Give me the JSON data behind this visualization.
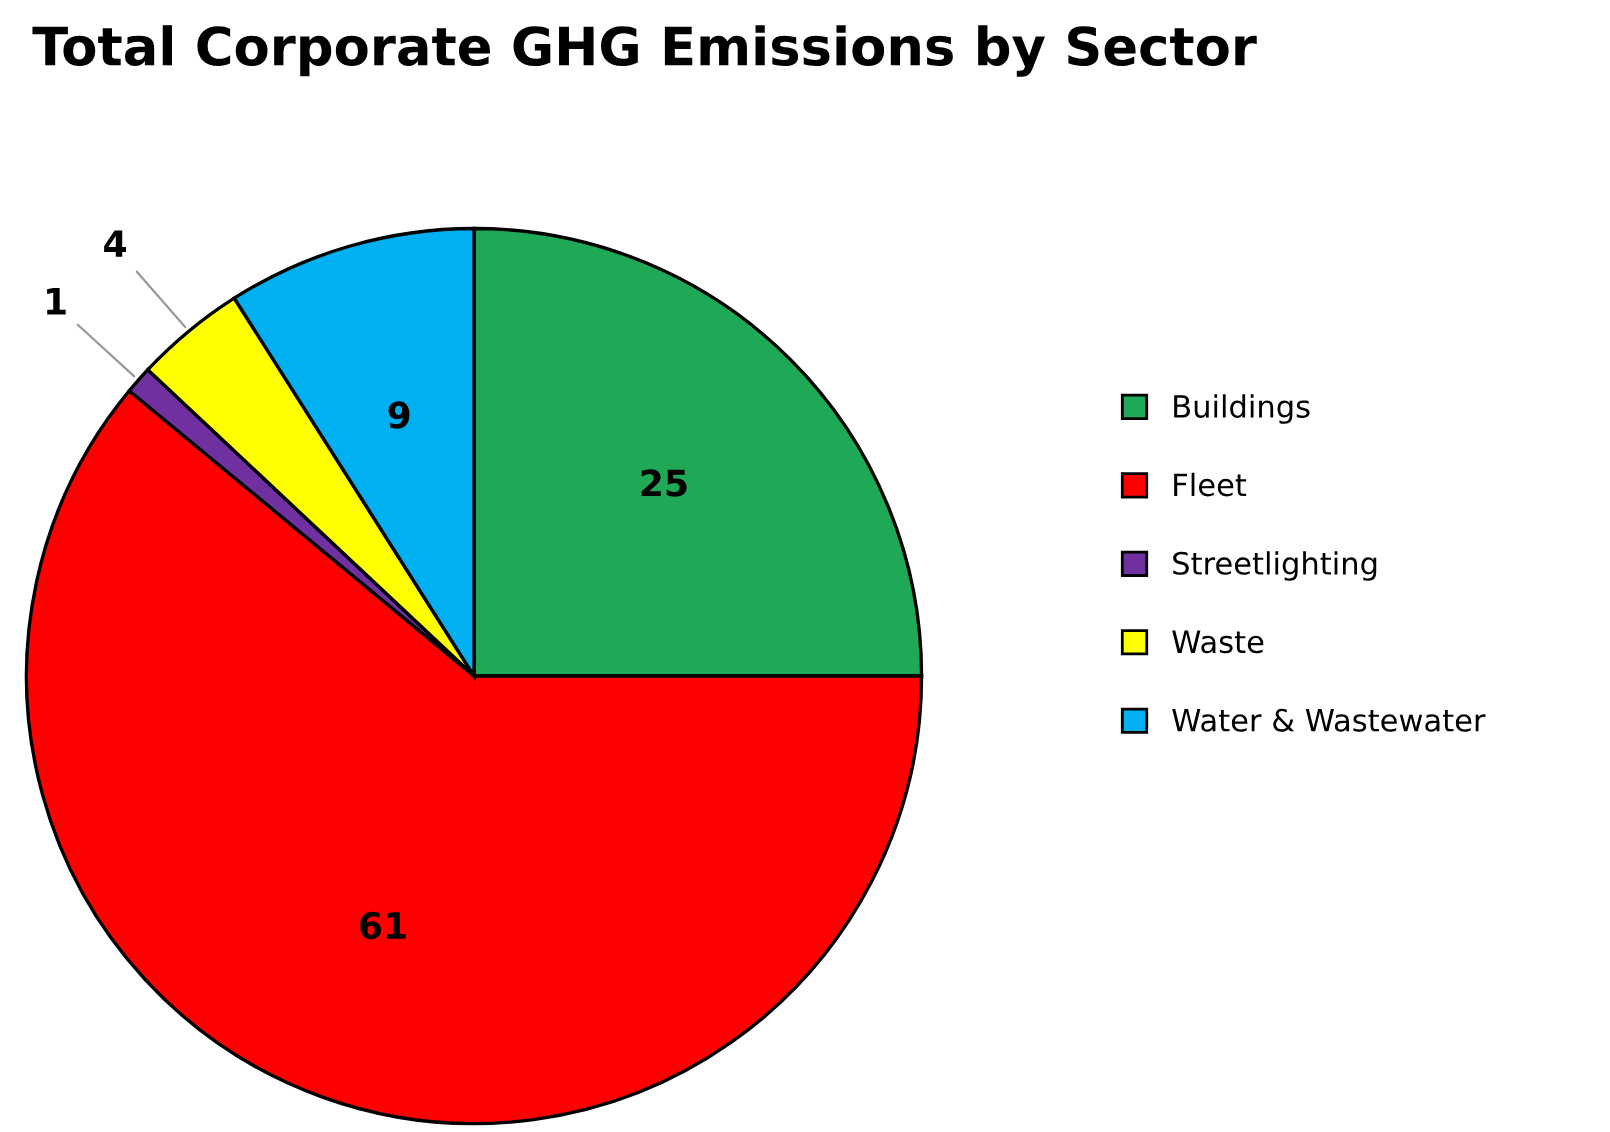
{
  "chart_data": {
    "type": "pie",
    "title": "Total Corporate GHG Emissions by Sector",
    "categories": [
      "Buildings",
      "Fleet",
      "Streetlighting",
      "Waste",
      "Water & Wastewater"
    ],
    "values": [
      25,
      61,
      1,
      4,
      9
    ],
    "colors": [
      "#1fa855",
      "#ff0000",
      "#7030a0",
      "#ffff00",
      "#00b0f0"
    ],
    "data_labels": true,
    "legend": "right"
  }
}
